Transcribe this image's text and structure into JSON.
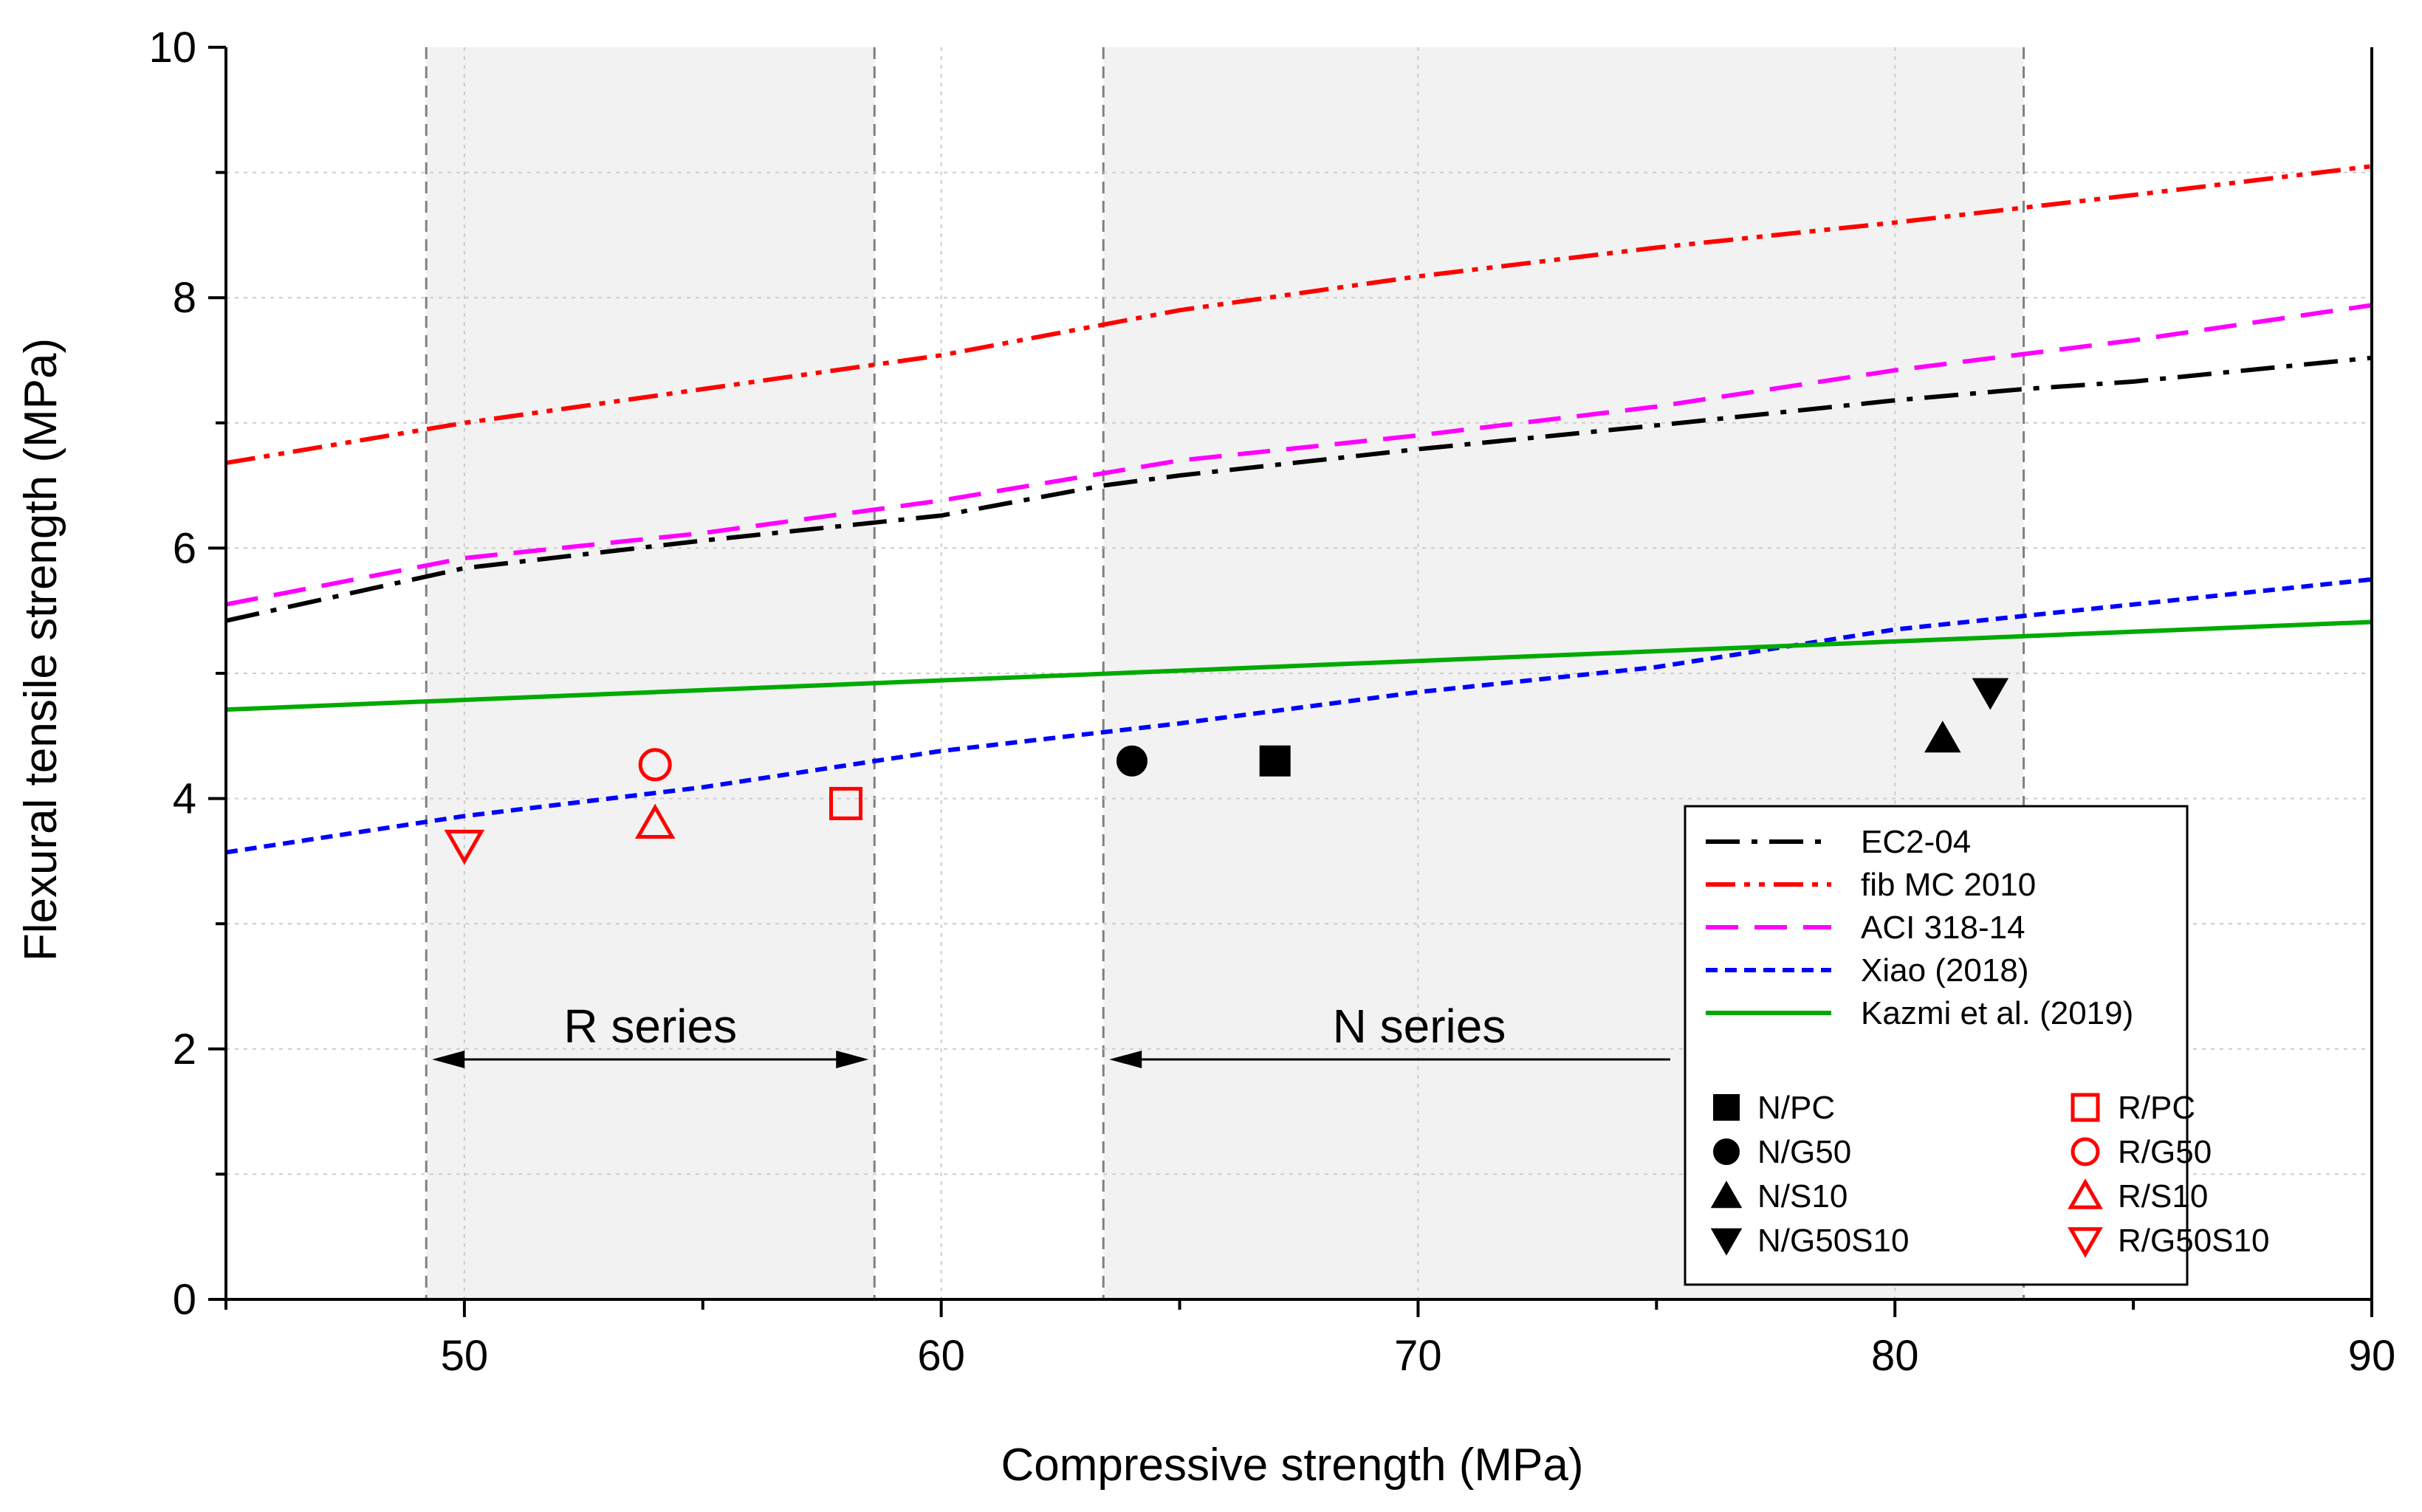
{
  "chart_data": {
    "type": "line+scatter",
    "xlabel": "Compressive strength (MPa)",
    "ylabel": "Flexural tensile strength (MPa)",
    "xlim": [
      45,
      90
    ],
    "ylim": [
      0,
      10
    ],
    "xticks": [
      50,
      60,
      70,
      80,
      90
    ],
    "yticks": [
      0,
      2,
      4,
      6,
      8,
      10
    ],
    "grid": "dotted",
    "legend_position": "bottom-right",
    "colors": {
      "black": "#000000",
      "red": "#ff0000",
      "magenta": "#ff00ff",
      "blue": "#0000ff",
      "green": "#00aa00",
      "region_fill": "#f2f2f2",
      "boundary": "#808080",
      "grid": "#cccccc"
    },
    "regions": [
      {
        "label": "R series",
        "x_range": [
          49.2,
          58.6
        ]
      },
      {
        "label": "N series",
        "x_range": [
          63.4,
          82.7
        ]
      }
    ],
    "curves": [
      {
        "name": "EC2-04",
        "style": "dash-dot",
        "color": "#000000",
        "x": [
          45,
          50,
          55,
          60,
          63.4,
          65,
          70,
          75,
          80,
          82.7,
          85,
          90
        ],
        "y": [
          5.42,
          5.84,
          6.06,
          6.26,
          6.5,
          6.58,
          6.79,
          6.98,
          7.18,
          7.27,
          7.33,
          7.52
        ]
      },
      {
        "name": "fib MC 2010",
        "style": "dash-dot-dot",
        "color": "#ff0000",
        "x": [
          45,
          50,
          55,
          60,
          65,
          70,
          75,
          80,
          85,
          90
        ],
        "y": [
          6.68,
          7.0,
          7.27,
          7.54,
          7.9,
          8.17,
          8.4,
          8.6,
          8.82,
          9.05
        ]
      },
      {
        "name": "ACI 318-14",
        "style": "dash",
        "color": "#ff00ff",
        "x": [
          45,
          50,
          55,
          60,
          65,
          70,
          75,
          80,
          85,
          90
        ],
        "y": [
          5.55,
          5.92,
          6.12,
          6.38,
          6.7,
          6.9,
          7.13,
          7.42,
          7.66,
          7.94
        ]
      },
      {
        "name": "Xiao (2018)",
        "style": "short-dash",
        "color": "#0000ff",
        "x": [
          45,
          50,
          55,
          60,
          65,
          70,
          75,
          80,
          85,
          90
        ],
        "y": [
          3.57,
          3.86,
          4.09,
          4.38,
          4.6,
          4.85,
          5.05,
          5.35,
          5.55,
          5.75
        ]
      },
      {
        "name": "Kazmi et al. (2019)",
        "style": "solid",
        "color": "#00aa00",
        "x": [
          45,
          90
        ],
        "y": [
          4.71,
          5.41
        ]
      }
    ],
    "points": [
      {
        "name": "N/PC",
        "marker": "square",
        "filled": true,
        "color": "#000000",
        "x": 67,
        "y": 4.3
      },
      {
        "name": "N/G50",
        "marker": "circle",
        "filled": true,
        "color": "#000000",
        "x": 64,
        "y": 4.3
      },
      {
        "name": "N/S10",
        "marker": "triangle-up",
        "filled": true,
        "color": "#000000",
        "x": 81,
        "y": 4.48
      },
      {
        "name": "N/G50S10",
        "marker": "triangle-down",
        "filled": true,
        "color": "#000000",
        "x": 82,
        "y": 4.85
      },
      {
        "name": "R/PC",
        "marker": "square",
        "filled": false,
        "color": "#ff0000",
        "x": 58,
        "y": 3.96
      },
      {
        "name": "R/G50",
        "marker": "circle",
        "filled": false,
        "color": "#ff0000",
        "x": 54,
        "y": 4.27
      },
      {
        "name": "R/S10",
        "marker": "triangle-up",
        "filled": false,
        "color": "#ff0000",
        "x": 54,
        "y": 3.8
      },
      {
        "name": "R/G50S10",
        "marker": "triangle-down",
        "filled": false,
        "color": "#ff0000",
        "x": 50,
        "y": 3.63
      }
    ]
  }
}
